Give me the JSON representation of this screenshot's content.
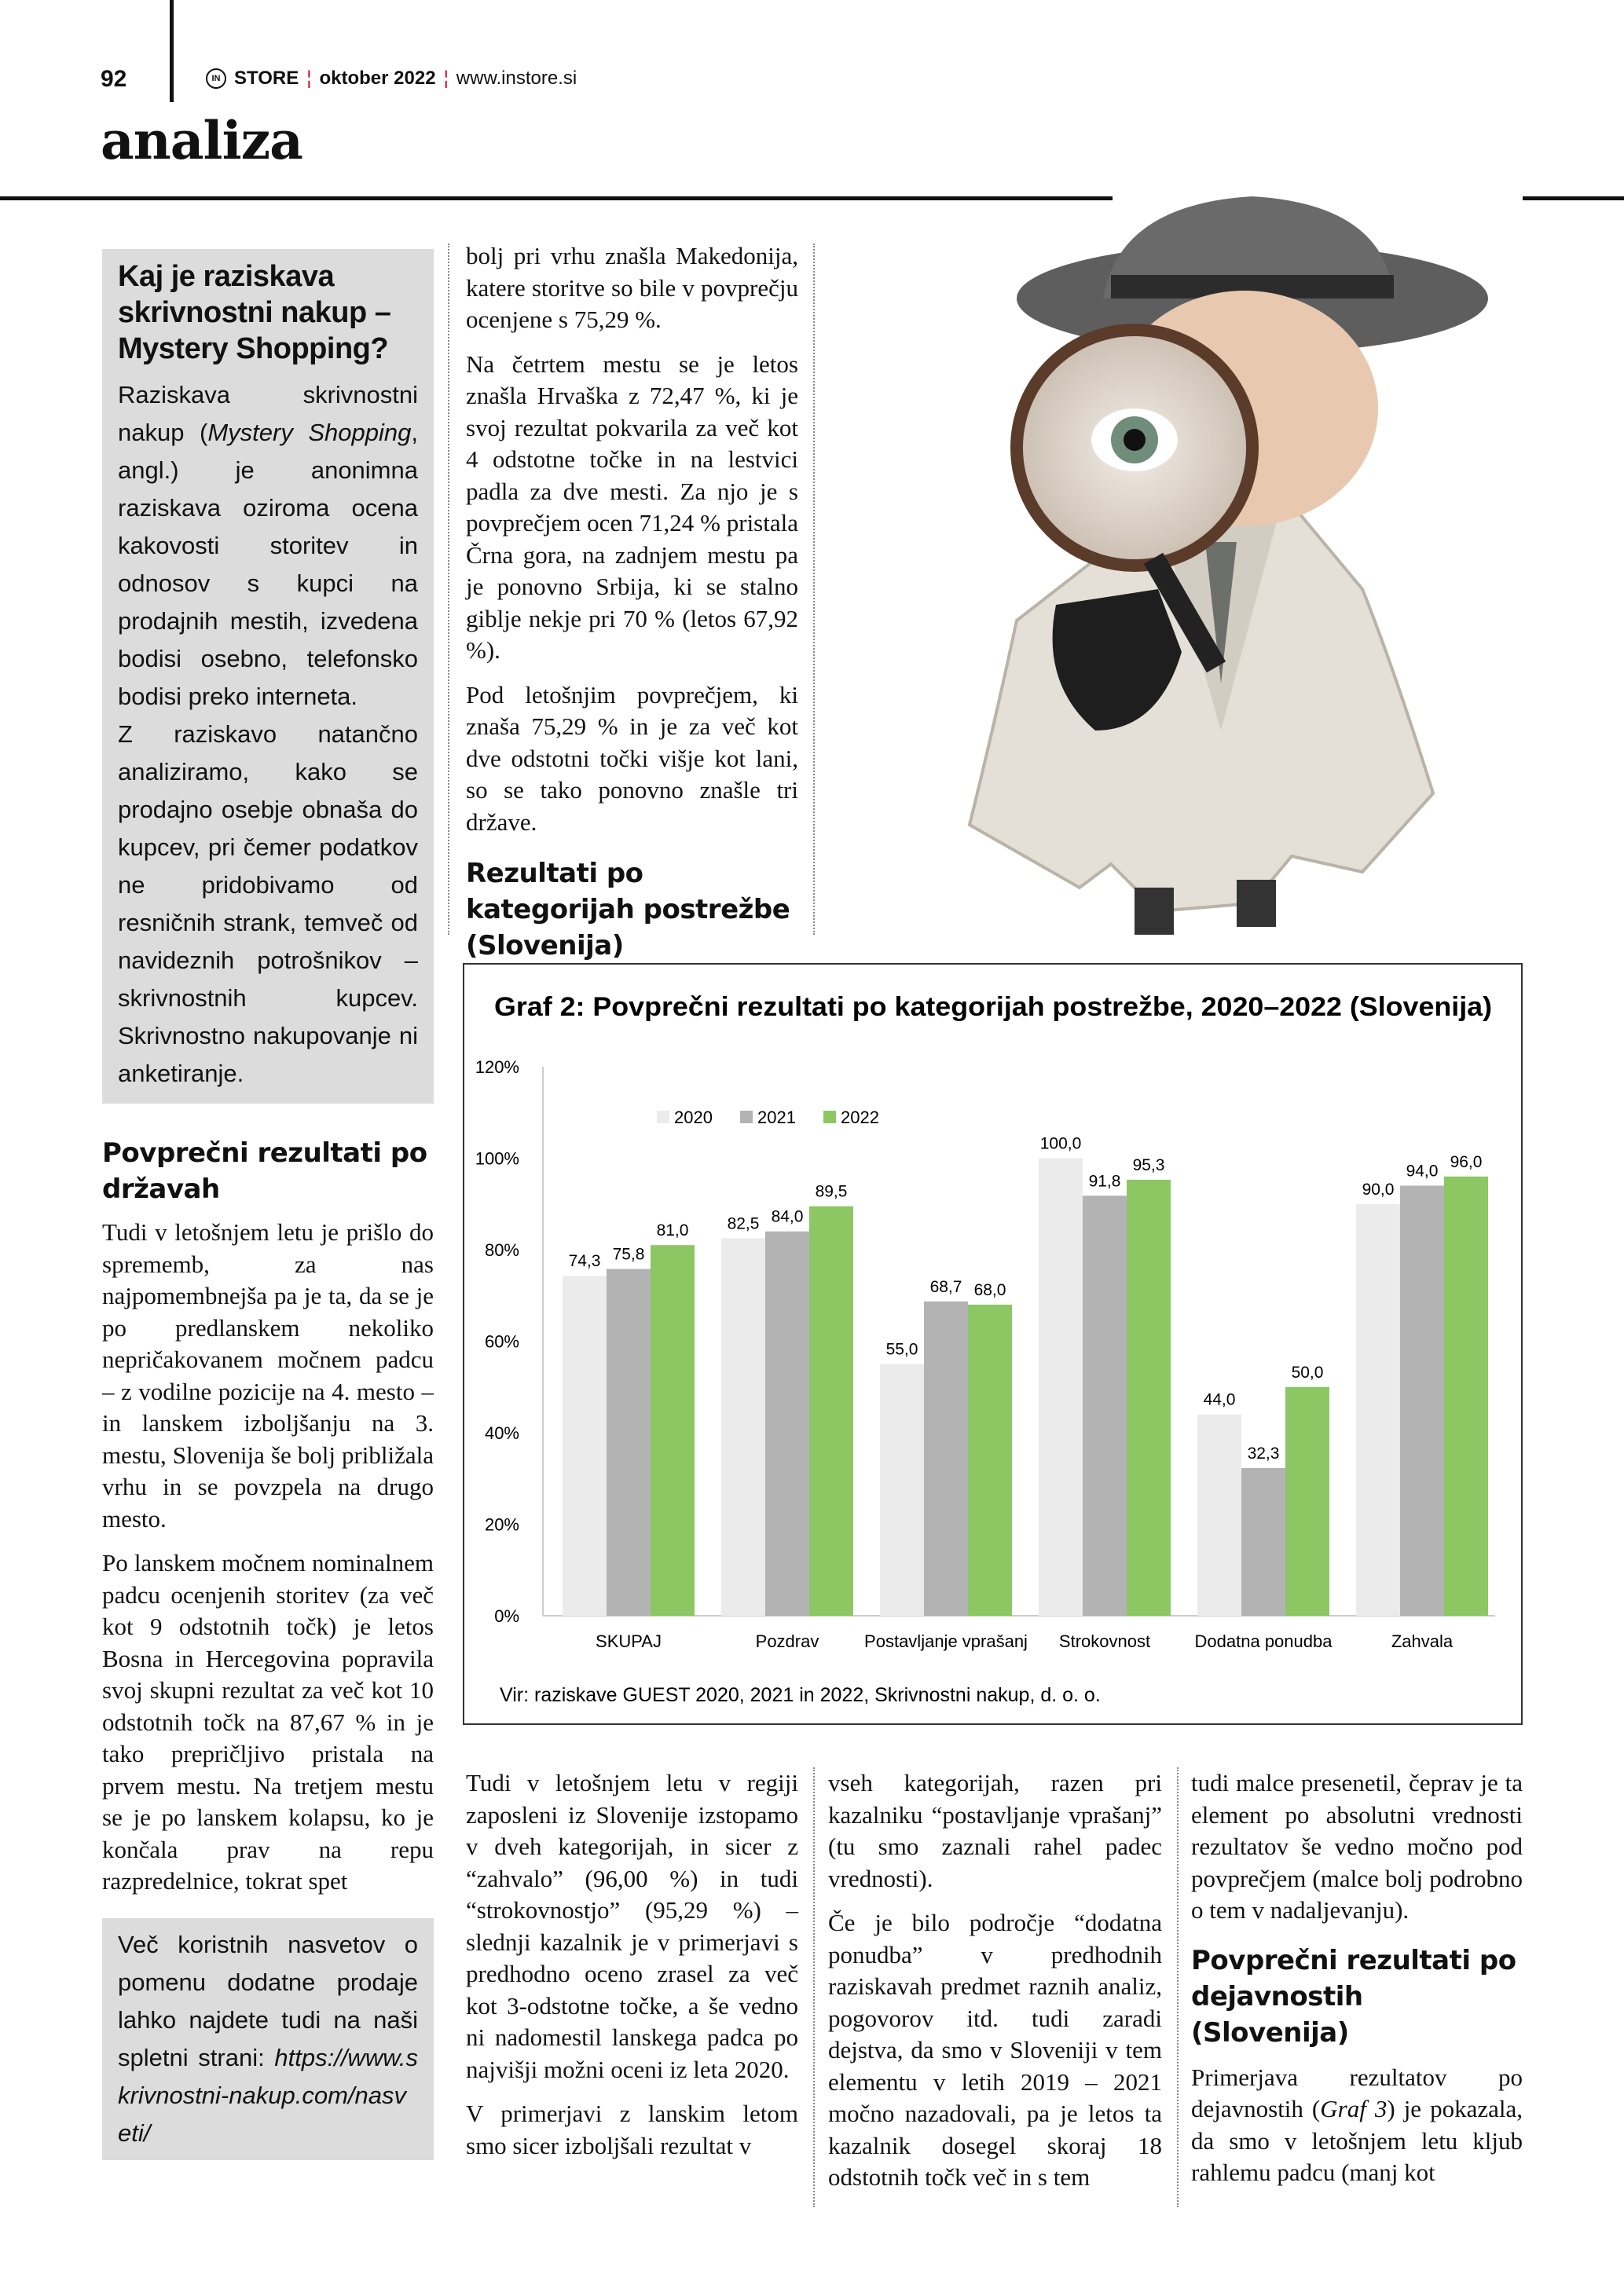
{
  "header": {
    "page_number": "92",
    "brand": "STORE",
    "brand_logo_text": "IN",
    "issue": "oktober 2022",
    "website": "www.instore.si",
    "section": "analiza"
  },
  "sidebar_box": {
    "title": "Kaj je raziskava skrivnostni nakup – Mystery Shopping?",
    "p1_a": "Raziskava skrivnostni nakup (",
    "p1_italic": "Mystery Shopping",
    "p1_b": ", angl.) je anonimna raziskava oziroma ocena kakovosti storitev in odnosov s kupci na prodajnih mestih, izvedena bodisi osebno, telefonsko bodisi preko interneta.",
    "p2": "Z raziskavo natančno analiziramo, kako se prodajno osebje obnaša do kupcev, pri čemer podatkov ne pridobivamo od resničnih strank, temveč od navideznih potrošnikov – skrivnostnih kupcev. Skrivnostno nakupovanje ni anketiranje."
  },
  "left_column": {
    "heading": "Povprečni rezultati po državah",
    "p1": "Tudi v letošnjem letu je prišlo do sprememb, za nas najpomembnejša pa je ta, da se je po predlanskem nekoliko nepričakovanem močnem padcu – z vodilne pozicije na 4. mesto – in lanskem izboljšanju na 3. mestu, Slovenija še bolj približala vrhu in se povzpela na drugo mesto.",
    "p2": "Po lanskem močnem nominalnem padcu ocenjenih storitev (za več kot 9 odstotnih točk) je letos Bosna in Hercegovina popravila svoj skupni rezultat za več kot 10 odstotnih točk na 87,67 % in je tako prepričljivo pristala na prvem mestu. Na tretjem mestu se je po lanskem kolapsu, ko je končala prav na repu razpredelnice, tokrat spet"
  },
  "tip_box": {
    "text": "Več koristnih nasvetov o pomenu dodatne prodaje lahko najdete tudi na naši spletni strani: ",
    "link": "https://www.skrivnostni-nakup.com/nasveti/"
  },
  "middle_column": {
    "p1": "bolj pri vrhu znašla Makedonija, katere storitve so bile v povprečju ocenjene s 75,29 %.",
    "p2": "Na četrtem mestu se je letos znašla Hrvaška z 72,47 %, ki je svoj rezultat pokvarila za več kot 4 odstotne točke in na lestvici padla za dve mesti. Za njo je s povprečjem ocen 71,24 % pristala Črna gora, na zadnjem mestu pa je ponovno Srbija, ki se stalno giblje nekje pri 70 % (letos 67,92 %).",
    "p3": "Pod letošnjim povprečjem, ki znaša 75,29 % in je za več kot dve odstotni točki višje kot lani, so se tako ponovno znašle tri države.",
    "heading": "Rezultati po kategorijah postrežbe (Slovenija)"
  },
  "bottom_columns": {
    "c1_p1": "Tudi v letošnjem letu v regiji zaposleni iz Slovenije izstopamo v dveh kategorijah, in sicer z “zahvalo” (96,00 %) in tudi “strokovnostjo” (95,29 %) – slednji kazalnik je v primerjavi s predhodno oceno zrasel za več kot 3-odstotne točke, a še vedno ni nadomestil lanskega padca po najvišji možni oceni iz leta 2020.",
    "c1_p2": "V primerjavi z lanskim letom smo sicer izboljšali rezultat v",
    "c2_p1": "vseh kategorijah, razen pri kazalniku “postavljanje vprašanj” (tu smo zaznali rahel padec vrednosti).",
    "c2_p2": "Če je bilo področje “dodatna ponudba” v predhodnih raziskavah predmet raznih analiz, pogovorov itd. tudi zaradi dejstva, da smo v Sloveniji v tem elementu v letih 2019 – 2021 močno nazadovali, pa je letos ta kazalnik dosegel skoraj 18 odstotnih točk več in s tem",
    "c3_p1": "tudi malce presenetil, čeprav je ta element po absolutni vrednosti rezultatov še vedno močno pod povprečjem (malce bolj podrobno o tem v nadaljevanju).",
    "c3_heading": "Povprečni rezultati po dejavnostih (Slovenija)",
    "c3_p2_a": "Primerjava rezultatov po dejavnostih (",
    "c3_p2_italic": "Graf 3",
    "c3_p2_b": ") je pokazala, da smo v letošnjem letu kljub rahlemu padcu (manj kot"
  },
  "photo": {
    "icon": "detective-with-magnifying-glass-photo"
  },
  "chart_data": {
    "type": "bar",
    "title": "Graf 2: Povprečni rezultati po kategorijah postrežbe, 2020–2022 (Slovenija)",
    "source": "Vir: raziskave GUEST 2020, 2021 in 2022, Skrivnostni nakup, d. o. o.",
    "categories": [
      "SKUPAJ",
      "Pozdrav",
      "Postavljanje vprašanj",
      "Strokovnost",
      "Dodatna ponudba",
      "Zahvala"
    ],
    "series": [
      {
        "name": "2020",
        "color": "#ebebeb",
        "values": [
          74.3,
          82.5,
          55.0,
          100.0,
          44.0,
          90.0
        ]
      },
      {
        "name": "2021",
        "color": "#b3b3b3",
        "values": [
          75.8,
          84.0,
          68.7,
          91.8,
          32.3,
          94.0
        ]
      },
      {
        "name": "2022",
        "color": "#8cc764",
        "values": [
          81.0,
          89.5,
          68.0,
          95.3,
          50.0,
          96.0
        ]
      }
    ],
    "ylim": [
      0,
      120
    ],
    "y_ticks": [
      "0%",
      "20%",
      "40%",
      "60%",
      "80%",
      "100%",
      "120%"
    ],
    "grid": false,
    "legend": "top-left",
    "xlabel": "",
    "ylabel": ""
  }
}
